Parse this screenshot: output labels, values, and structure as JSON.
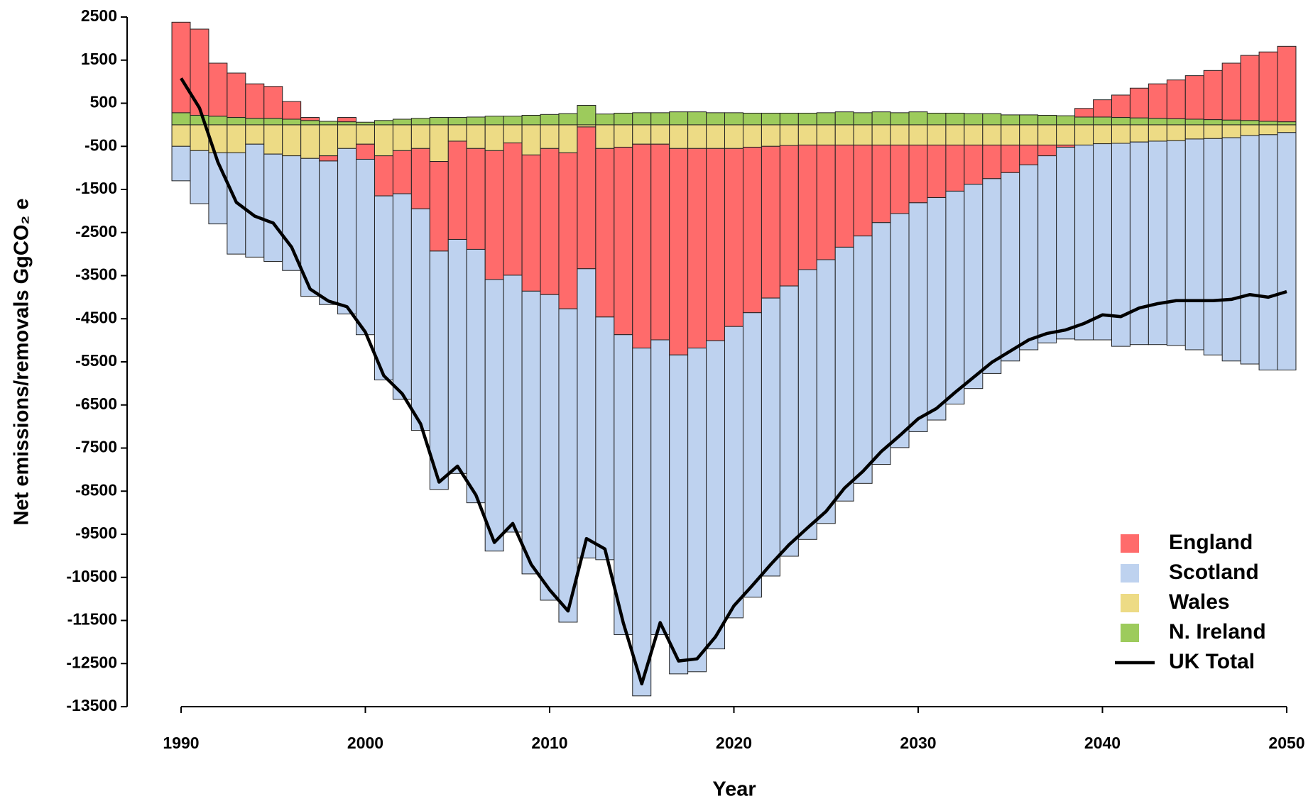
{
  "chart_data": {
    "type": "bar",
    "stacked": true,
    "x_label": "Year",
    "y_label": "Net emissions/removals  GgCO₂ e",
    "x": [
      1990,
      1991,
      1992,
      1993,
      1994,
      1995,
      1996,
      1997,
      1998,
      1999,
      2000,
      2001,
      2002,
      2003,
      2004,
      2005,
      2006,
      2007,
      2008,
      2009,
      2010,
      2011,
      2012,
      2013,
      2014,
      2015,
      2016,
      2017,
      2018,
      2019,
      2020,
      2021,
      2022,
      2023,
      2024,
      2025,
      2026,
      2027,
      2028,
      2029,
      2030,
      2031,
      2032,
      2033,
      2034,
      2035,
      2036,
      2037,
      2038,
      2039,
      2040,
      2041,
      2042,
      2043,
      2044,
      2045,
      2046,
      2047,
      2048,
      2049,
      2050
    ],
    "series": [
      {
        "name": "England",
        "color": "#ff6b6b",
        "values": [
          2100,
          2000,
          1230,
          1030,
          800,
          740,
          410,
          70,
          -120,
          100,
          -350,
          -930,
          -1000,
          -1400,
          -2080,
          -2280,
          -2340,
          -2990,
          -3070,
          -3160,
          -3390,
          -3620,
          -3290,
          -3910,
          -4350,
          -4730,
          -4540,
          -4790,
          -4630,
          -4460,
          -4130,
          -3840,
          -3520,
          -3260,
          -2890,
          -2660,
          -2370,
          -2110,
          -1800,
          -1590,
          -1340,
          -1220,
          -1070,
          -910,
          -780,
          -640,
          -460,
          -250,
          -50,
          200,
          400,
          520,
          690,
          800,
          900,
          1010,
          1140,
          1320,
          1510,
          1610,
          1750
        ]
      },
      {
        "name": "Scotland",
        "color": "#bed2ef",
        "values": [
          -800,
          -1230,
          -1650,
          -2350,
          -2620,
          -2490,
          -2660,
          -3200,
          -3330,
          -3840,
          -4070,
          -4270,
          -4770,
          -5140,
          -5530,
          -5430,
          -5880,
          -6300,
          -5960,
          -6560,
          -7090,
          -7270,
          -6710,
          -5630,
          -6960,
          -8070,
          -6840,
          -7400,
          -7510,
          -7150,
          -6760,
          -6600,
          -6450,
          -6270,
          -6260,
          -6120,
          -5890,
          -5740,
          -5610,
          -5430,
          -5310,
          -5160,
          -4940,
          -4740,
          -4520,
          -4370,
          -4290,
          -4340,
          -4450,
          -4520,
          -4550,
          -4710,
          -4700,
          -4720,
          -4750,
          -4890,
          -5020,
          -5180,
          -5300,
          -5460,
          -5510
        ]
      },
      {
        "name": "Wales",
        "color": "#eddb85",
        "values": [
          -500,
          -600,
          -650,
          -650,
          -450,
          -680,
          -720,
          -780,
          -720,
          -550,
          -450,
          -720,
          -600,
          -550,
          -850,
          -380,
          -550,
          -600,
          -420,
          -700,
          -550,
          -650,
          -50,
          -550,
          -520,
          -450,
          -450,
          -550,
          -550,
          -550,
          -550,
          -520,
          -500,
          -480,
          -470,
          -470,
          -470,
          -470,
          -470,
          -470,
          -470,
          -470,
          -470,
          -470,
          -470,
          -470,
          -470,
          -470,
          -470,
          -470,
          -440,
          -430,
          -400,
          -380,
          -370,
          -330,
          -320,
          -300,
          -250,
          -230,
          -180
        ]
      },
      {
        "name": "N. Ireland",
        "color": "#9dcb5c",
        "values": [
          280,
          220,
          200,
          170,
          150,
          150,
          130,
          100,
          80,
          70,
          60,
          100,
          130,
          150,
          170,
          170,
          180,
          200,
          200,
          220,
          240,
          260,
          450,
          250,
          270,
          280,
          280,
          300,
          300,
          280,
          280,
          270,
          270,
          270,
          270,
          280,
          300,
          280,
          300,
          280,
          300,
          270,
          270,
          260,
          260,
          230,
          230,
          220,
          210,
          180,
          180,
          170,
          160,
          150,
          140,
          130,
          120,
          110,
          100,
          80,
          70
        ]
      },
      {
        "name": "UK Total",
        "type": "line",
        "color": "#000000",
        "values": [
          1080,
          390,
          -870,
          -1800,
          -2120,
          -2280,
          -2840,
          -3810,
          -4090,
          -4220,
          -4810,
          -5820,
          -6240,
          -6940,
          -8290,
          -7920,
          -8590,
          -9690,
          -9250,
          -10200,
          -10790,
          -11280,
          -9600,
          -9840,
          -11560,
          -12970,
          -11550,
          -12440,
          -12390,
          -11880,
          -11160,
          -10690,
          -10200,
          -9740,
          -9350,
          -8970,
          -8430,
          -8040,
          -7580,
          -7210,
          -6820,
          -6580,
          -6210,
          -5860,
          -5510,
          -5250,
          -4990,
          -4840,
          -4760,
          -4610,
          -4410,
          -4450,
          -4250,
          -4150,
          -4080,
          -4080,
          -4080,
          -4050,
          -3940,
          -4000,
          -3870
        ]
      }
    ],
    "xlim": [
      1990,
      2050
    ],
    "xticks": [
      1990,
      2000,
      2010,
      2020,
      2030,
      2040,
      2050
    ],
    "ylim": [
      -13500,
      2500
    ],
    "yticks": [
      2500,
      1500,
      500,
      -500,
      -1500,
      -2500,
      -3500,
      -4500,
      -5500,
      -6500,
      -7500,
      -8500,
      -9500,
      -10500,
      -11500,
      -12500,
      -13500
    ],
    "grid": false,
    "legend": "lower right"
  }
}
